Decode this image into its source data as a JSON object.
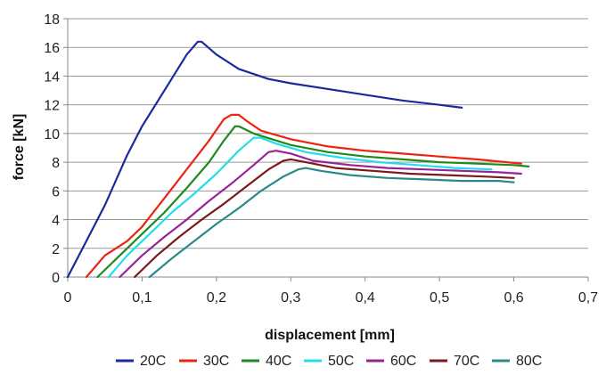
{
  "chart_data": {
    "type": "line",
    "title": "",
    "xlabel": "displacement [mm]",
    "ylabel": "force [kN]",
    "xlim": [
      0,
      0.7
    ],
    "ylim": [
      0,
      18
    ],
    "x_ticks": [
      0,
      0.1,
      0.2,
      0.3,
      0.4,
      0.5,
      0.6,
      0.7
    ],
    "x_tick_labels": [
      "0",
      "0,1",
      "0,2",
      "0,3",
      "0,4",
      "0,5",
      "0,6",
      "0,7"
    ],
    "y_ticks": [
      0,
      2,
      4,
      6,
      8,
      10,
      12,
      14,
      16,
      18
    ],
    "y_tick_labels": [
      "0",
      "2",
      "4",
      "6",
      "8",
      "10",
      "12",
      "14",
      "16",
      "18"
    ],
    "grid": "horizontal",
    "legend_position": "bottom",
    "series": [
      {
        "name": "20C",
        "color": "#1a2a9c",
        "x": [
          0,
          0.02,
          0.05,
          0.08,
          0.1,
          0.13,
          0.16,
          0.175,
          0.18,
          0.2,
          0.23,
          0.27,
          0.3,
          0.35,
          0.4,
          0.45,
          0.5,
          0.53
        ],
        "y": [
          0,
          2,
          5,
          8.5,
          10.5,
          13,
          15.5,
          16.4,
          16.4,
          15.5,
          14.5,
          13.8,
          13.5,
          13.1,
          12.7,
          12.3,
          12,
          11.8
        ]
      },
      {
        "name": "30C",
        "color": "#ee2211",
        "x": [
          0.025,
          0.05,
          0.08,
          0.1,
          0.13,
          0.16,
          0.19,
          0.21,
          0.22,
          0.23,
          0.24,
          0.26,
          0.3,
          0.35,
          0.4,
          0.45,
          0.5,
          0.55,
          0.61
        ],
        "y": [
          0,
          1.5,
          2.5,
          3.5,
          5.5,
          7.5,
          9.5,
          11,
          11.3,
          11.3,
          10.9,
          10.2,
          9.6,
          9.1,
          8.8,
          8.6,
          8.4,
          8.2,
          7.9
        ]
      },
      {
        "name": "40C",
        "color": "#1e8a1e",
        "x": [
          0.04,
          0.07,
          0.1,
          0.13,
          0.16,
          0.19,
          0.21,
          0.225,
          0.23,
          0.25,
          0.3,
          0.35,
          0.4,
          0.45,
          0.5,
          0.55,
          0.6,
          0.62
        ],
        "y": [
          0,
          1.5,
          3,
          4.5,
          6.2,
          8,
          9.5,
          10.5,
          10.5,
          10,
          9.2,
          8.7,
          8.4,
          8.2,
          8,
          7.9,
          7.8,
          7.7
        ]
      },
      {
        "name": "50C",
        "color": "#22ddee",
        "x": [
          0.055,
          0.08,
          0.11,
          0.14,
          0.17,
          0.2,
          0.23,
          0.25,
          0.26,
          0.28,
          0.32,
          0.37,
          0.42,
          0.47,
          0.52,
          0.57
        ],
        "y": [
          0,
          1.5,
          3,
          4.5,
          5.8,
          7.2,
          8.8,
          9.7,
          9.7,
          9.3,
          8.7,
          8.3,
          8,
          7.8,
          7.6,
          7.5
        ]
      },
      {
        "name": "60C",
        "color": "#992299",
        "x": [
          0.07,
          0.1,
          0.13,
          0.16,
          0.19,
          0.22,
          0.25,
          0.27,
          0.28,
          0.3,
          0.33,
          0.38,
          0.43,
          0.48,
          0.53,
          0.58,
          0.61
        ],
        "y": [
          0,
          1.5,
          2.8,
          4,
          5.3,
          6.5,
          7.8,
          8.7,
          8.8,
          8.6,
          8.1,
          7.8,
          7.6,
          7.5,
          7.4,
          7.3,
          7.2
        ]
      },
      {
        "name": "70C",
        "color": "#7a1a1a",
        "x": [
          0.09,
          0.12,
          0.15,
          0.18,
          0.21,
          0.24,
          0.27,
          0.29,
          0.3,
          0.32,
          0.36,
          0.41,
          0.46,
          0.51,
          0.56,
          0.6
        ],
        "y": [
          0,
          1.5,
          2.8,
          4,
          5.1,
          6.3,
          7.5,
          8.1,
          8.2,
          8,
          7.6,
          7.4,
          7.2,
          7.1,
          7,
          6.9
        ]
      },
      {
        "name": "80C",
        "color": "#2a8a8a",
        "x": [
          0.11,
          0.14,
          0.17,
          0.2,
          0.23,
          0.26,
          0.29,
          0.31,
          0.32,
          0.34,
          0.38,
          0.43,
          0.48,
          0.53,
          0.58,
          0.6
        ],
        "y": [
          0,
          1.3,
          2.5,
          3.7,
          4.8,
          6,
          7,
          7.5,
          7.6,
          7.4,
          7.1,
          6.9,
          6.8,
          6.7,
          6.7,
          6.6
        ]
      }
    ]
  }
}
